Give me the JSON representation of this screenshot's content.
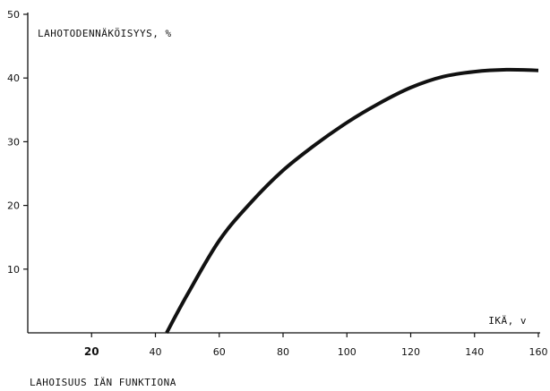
{
  "chart_data": {
    "type": "line",
    "ylabel": "LAHOTODENNÄKÖISYYS, %",
    "xlabel": "IKÄ, v",
    "caption": "LAHOISUUS IÄN FUNKTIONA",
    "xlim": [
      0,
      160
    ],
    "ylim": [
      0,
      50
    ],
    "x_ticks": [
      {
        "value": 20,
        "label": "20"
      },
      {
        "value": 40,
        "label": "40"
      },
      {
        "value": 60,
        "label": "60"
      },
      {
        "value": 80,
        "label": "80"
      },
      {
        "value": 100,
        "label": "100"
      },
      {
        "value": 120,
        "label": "120"
      },
      {
        "value": 140,
        "label": "140"
      },
      {
        "value": 160,
        "label": "160"
      }
    ],
    "y_ticks": [
      {
        "value": 10,
        "label": "10"
      },
      {
        "value": 20,
        "label": "20"
      },
      {
        "value": 30,
        "label": "30"
      },
      {
        "value": 40,
        "label": "40"
      },
      {
        "value": 50,
        "label": "50"
      }
    ],
    "grid": false,
    "series": [
      {
        "x": [
          43.5,
          50,
          60,
          70,
          80,
          90,
          100,
          110,
          120,
          130,
          140,
          150,
          160
        ],
        "y": [
          0,
          6,
          14.5,
          20.5,
          25.5,
          29.5,
          33,
          36,
          38.5,
          40.2,
          41,
          41.3,
          41.2
        ]
      }
    ]
  }
}
